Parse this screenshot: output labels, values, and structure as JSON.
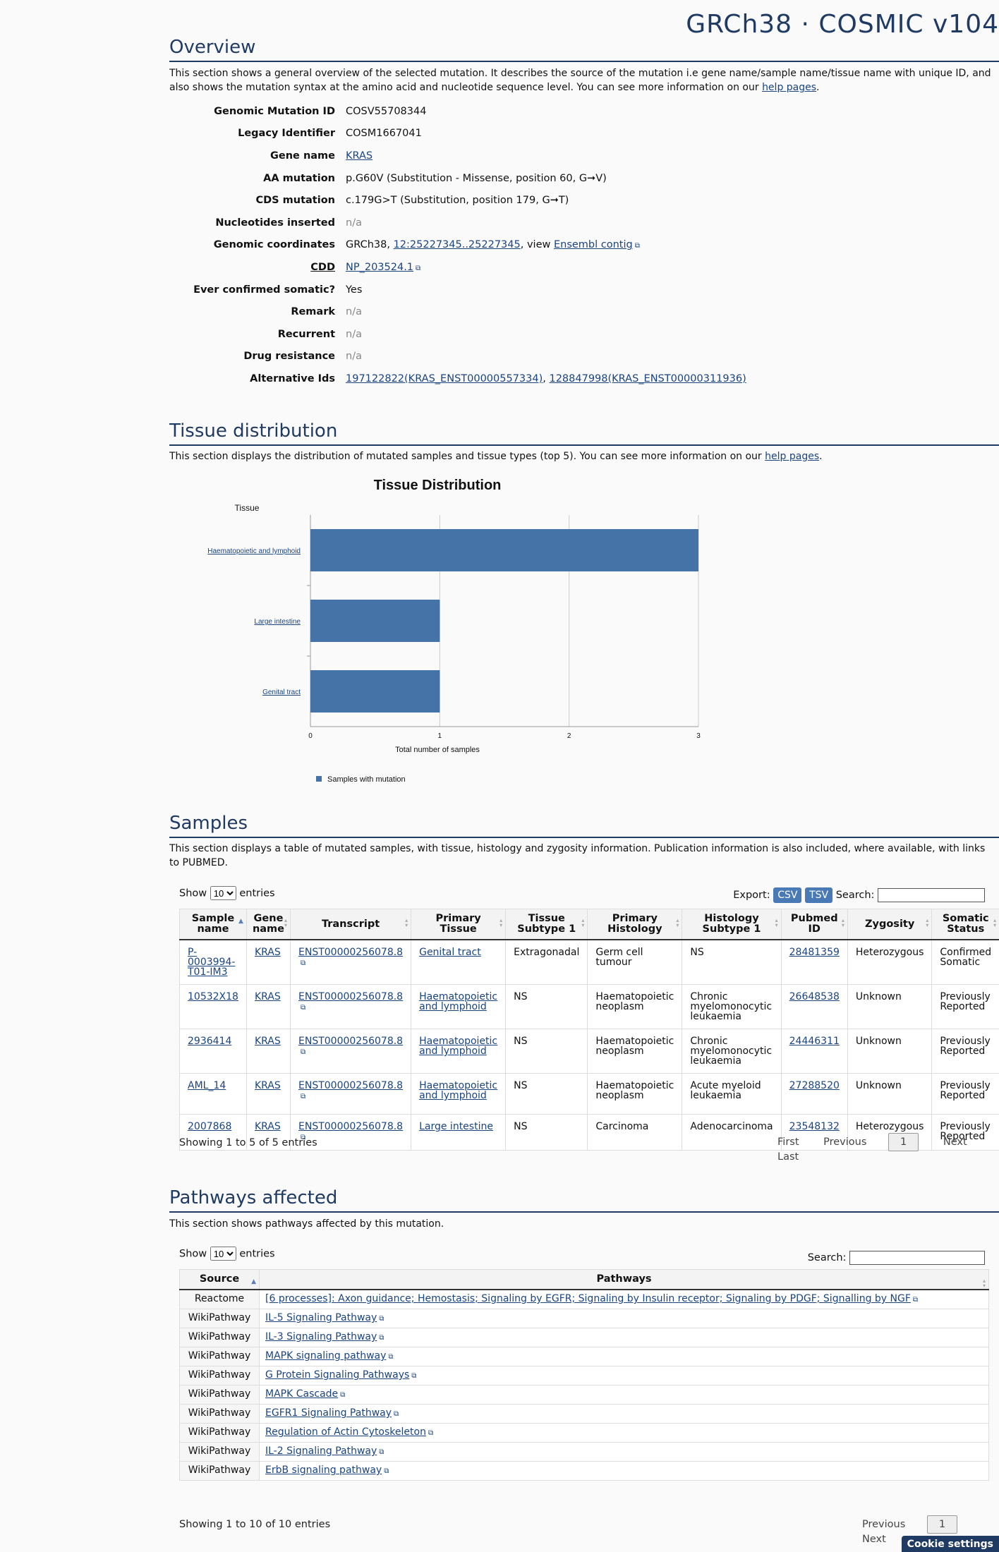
{
  "header": {
    "title": "GRCh38 · COSMIC v104"
  },
  "overview": {
    "heading": "Overview",
    "description_pre": "This section shows a general overview of the selected mutation. It describes the source of the mutation i.e gene name/sample name/tissue name with unique ID, and also shows the mutation syntax at the amino acid and nucleotide sequence level. You can see more information on our ",
    "help_link": "help pages",
    "description_post": ".",
    "fields": {
      "genomic_mutation_id": {
        "label": "Genomic Mutation ID",
        "value": "COSV55708344"
      },
      "legacy_identifier": {
        "label": "Legacy Identifier",
        "value": "COSM1667041"
      },
      "gene_name": {
        "label": "Gene name",
        "value": "KRAS"
      },
      "aa_mutation": {
        "label": "AA mutation",
        "value": "p.G60V (Substitution - Missense, position 60, G➞V)"
      },
      "cds_mutation": {
        "label": "CDS mutation",
        "value": "c.179G>T (Substitution, position 179, G➞T)"
      },
      "nucleotides_inserted": {
        "label": "Nucleotides inserted",
        "value": "n/a"
      },
      "genomic_coordinates": {
        "label": "Genomic coordinates",
        "prefix": "GRCh38, ",
        "coord_link": "12:25227345..25227345",
        "mid": ", view ",
        "contig_link": "Ensembl contig"
      },
      "cdd": {
        "label": "CDD",
        "value": "NP_203524.1"
      },
      "ever_confirmed_somatic": {
        "label": "Ever confirmed somatic?",
        "value": "Yes"
      },
      "remark": {
        "label": "Remark",
        "value": "n/a"
      },
      "recurrent": {
        "label": "Recurrent",
        "value": "n/a"
      },
      "drug_resistance": {
        "label": "Drug resistance",
        "value": "n/a"
      },
      "alternative_ids": {
        "label": "Alternative Ids",
        "id1": "197122822(KRAS_ENST00000557334)",
        "sep": ", ",
        "id2": "128847998(KRAS_ENST00000311936)"
      }
    }
  },
  "tissue": {
    "heading": "Tissue distribution",
    "description_pre": "This section displays the distribution of mutated samples and tissue types (top 5). You can see more information on our ",
    "help_link": "help pages",
    "description_post": "."
  },
  "chart_data": {
    "type": "bar",
    "orientation": "horizontal",
    "title": "Tissue Distribution",
    "ylabel": "Tissue",
    "xlabel": "Total number of samples",
    "categories": [
      "Haematopoietic and lymphoid",
      "Large intestine",
      "Genital tract"
    ],
    "series": [
      {
        "name": "Samples with mutation",
        "values": [
          3,
          1,
          1
        ]
      }
    ],
    "xlim": [
      0,
      3
    ],
    "xticks": [
      "0",
      "1",
      "2",
      "3"
    ],
    "grid": true,
    "legend": "bottom-left",
    "color": "#4572a7"
  },
  "samples": {
    "heading": "Samples",
    "description": "This section displays a table of mutated samples, with tissue, histology and zygosity information. Publication information is also included, where available, with links to PUBMED.",
    "show_label": "Show",
    "page_size": "10",
    "entries_label": "entries",
    "export_label": "Export:",
    "csv": "CSV",
    "tsv": "TSV",
    "search_label": "Search:",
    "columns": [
      "Sample name",
      "Gene name",
      "Transcript",
      "Primary Tissue",
      "Tissue Subtype 1",
      "Primary Histology",
      "Histology Subtype 1",
      "Pubmed ID",
      "Zygosity",
      "Somatic Status"
    ],
    "rows": [
      [
        "P-0003994-T01-IM3",
        "KRAS",
        "ENST00000256078.8",
        "Genital tract",
        "Extragonadal",
        "Germ cell tumour",
        "NS",
        "28481359",
        "Heterozygous",
        "Confirmed Somatic"
      ],
      [
        "10532X18",
        "KRAS",
        "ENST00000256078.8",
        "Haematopoietic and lymphoid",
        "NS",
        "Haematopoietic neoplasm",
        "Chronic myelomonocytic leukaemia",
        "26648538",
        "Unknown",
        "Previously Reported"
      ],
      [
        "2936414",
        "KRAS",
        "ENST00000256078.8",
        "Haematopoietic and lymphoid",
        "NS",
        "Haematopoietic neoplasm",
        "Chronic myelomonocytic leukaemia",
        "24446311",
        "Unknown",
        "Previously Reported"
      ],
      [
        "AML_14",
        "KRAS",
        "ENST00000256078.8",
        "Haematopoietic and lymphoid",
        "NS",
        "Haematopoietic neoplasm",
        "Acute myeloid leukaemia",
        "27288520",
        "Unknown",
        "Previously Reported"
      ],
      [
        "2007868",
        "KRAS",
        "ENST00000256078.8",
        "Large intestine",
        "NS",
        "Carcinoma",
        "Adenocarcinoma",
        "23548132",
        "Heterozygous",
        "Previously Reported"
      ]
    ],
    "info": "Showing 1 to 5 of 5 entries",
    "pager": {
      "first": "First",
      "previous": "Previous",
      "current": "1",
      "next": "Next",
      "last": "Last"
    }
  },
  "pathways": {
    "heading": "Pathways affected",
    "description": "This section shows pathways affected by this mutation.",
    "show_label": "Show",
    "page_size": "10",
    "entries_label": "entries",
    "search_label": "Search:",
    "columns": [
      "Source",
      "Pathways"
    ],
    "rows": [
      [
        "Reactome",
        "[6 processes]: Axon guidance; Hemostasis; Signaling by EGFR; Signaling by Insulin receptor; Signaling by PDGF; Signalling by NGF"
      ],
      [
        "WikiPathway",
        "IL-5 Signaling Pathway"
      ],
      [
        "WikiPathway",
        "IL-3 Signaling Pathway"
      ],
      [
        "WikiPathway",
        "MAPK signaling pathway"
      ],
      [
        "WikiPathway",
        "G Protein Signaling Pathways"
      ],
      [
        "WikiPathway",
        "MAPK Cascade"
      ],
      [
        "WikiPathway",
        "EGFR1 Signaling Pathway"
      ],
      [
        "WikiPathway",
        "Regulation of Actin Cytoskeleton"
      ],
      [
        "WikiPathway",
        "IL-2 Signaling Pathway"
      ],
      [
        "WikiPathway",
        "ErbB signaling pathway"
      ]
    ],
    "info": "Showing 1 to 10 of 10 entries",
    "pager": {
      "previous": "Previous",
      "current": "1",
      "next": "Next"
    }
  },
  "cookie": {
    "label": "Cookie settings"
  }
}
